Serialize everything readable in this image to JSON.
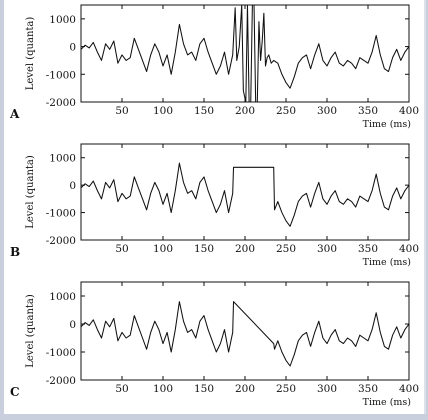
{
  "colors": {
    "background": "#c9cfdc",
    "figure": "#ffffff",
    "line": "#111111"
  },
  "chart_data": [
    {
      "type": "line",
      "panel_label": "A",
      "title": "",
      "xlabel": "Time (ms)",
      "ylabel": "Level (quanta)",
      "xlim": [
        0,
        400
      ],
      "ylim": [
        -2000,
        1500
      ],
      "xticks": [
        50,
        100,
        150,
        200,
        250,
        300,
        350,
        400
      ],
      "yticks": [
        -2000,
        -1000,
        0,
        1000
      ],
      "grid": false,
      "series": [
        {
          "x": [
            0,
            5,
            10,
            15,
            20,
            25,
            30,
            35,
            40,
            45,
            50,
            55,
            60,
            65,
            70,
            75,
            80,
            85,
            90,
            95,
            100,
            105,
            110,
            115,
            120,
            125,
            130,
            135,
            140,
            145,
            150,
            155,
            160,
            165,
            170,
            175,
            180,
            185,
            188,
            190,
            193,
            196,
            198,
            201,
            203,
            205,
            207,
            209,
            211,
            213,
            215,
            217,
            219,
            221,
            223,
            225,
            227,
            229,
            232,
            235,
            240,
            245,
            250,
            255,
            260,
            265,
            270,
            275,
            280,
            285,
            290,
            295,
            300,
            305,
            310,
            315,
            320,
            325,
            330,
            335,
            340,
            345,
            350,
            355,
            360,
            365,
            370,
            375,
            380,
            385,
            390,
            395,
            400
          ],
          "y": [
            -100,
            50,
            -50,
            150,
            -200,
            -500,
            100,
            -100,
            200,
            -600,
            -300,
            -500,
            -400,
            300,
            -100,
            -500,
            -900,
            -300,
            100,
            -200,
            -700,
            -300,
            -1000,
            -200,
            800,
            100,
            -300,
            -200,
            -500,
            100,
            300,
            -200,
            -600,
            -1000,
            -700,
            -200,
            -1000,
            -300,
            1400,
            -500,
            0,
            1500,
            -1600,
            -2000,
            1500,
            -2000,
            -2000,
            1500,
            1500,
            -2000,
            -2000,
            900,
            -500,
            200,
            1200,
            -700,
            -400,
            -300,
            -600,
            -500,
            -600,
            -1000,
            -1300,
            -1500,
            -1100,
            -600,
            -400,
            -300,
            -800,
            -300,
            100,
            -500,
            -700,
            -400,
            -200,
            -600,
            -700,
            -500,
            -600,
            -800,
            -400,
            -500,
            -600,
            -200,
            400,
            -300,
            -800,
            -900,
            -400,
            -100,
            -500,
            -200,
            0
          ]
        }
      ]
    },
    {
      "type": "line",
      "panel_label": "B",
      "title": "",
      "xlabel": "Time (ms)",
      "ylabel": "Level (quanta)",
      "xlim": [
        0,
        400
      ],
      "ylim": [
        -2000,
        1500
      ],
      "xticks": [
        50,
        100,
        150,
        200,
        250,
        300,
        350,
        400
      ],
      "yticks": [
        -2000,
        -1000,
        0,
        1000
      ],
      "grid": false,
      "series": [
        {
          "x": [
            0,
            5,
            10,
            15,
            20,
            25,
            30,
            35,
            40,
            45,
            50,
            55,
            60,
            65,
            70,
            75,
            80,
            85,
            90,
            95,
            100,
            105,
            110,
            115,
            120,
            125,
            130,
            135,
            140,
            145,
            150,
            155,
            160,
            165,
            170,
            175,
            180,
            185,
            186,
            235,
            236,
            240,
            245,
            250,
            255,
            260,
            265,
            270,
            275,
            280,
            285,
            290,
            295,
            300,
            305,
            310,
            315,
            320,
            325,
            330,
            335,
            340,
            345,
            350,
            355,
            360,
            365,
            370,
            375,
            380,
            385,
            390,
            395,
            400
          ],
          "y": [
            -100,
            50,
            -50,
            150,
            -200,
            -500,
            100,
            -100,
            200,
            -600,
            -300,
            -500,
            -400,
            300,
            -100,
            -500,
            -900,
            -300,
            100,
            -200,
            -700,
            -300,
            -1000,
            -200,
            800,
            100,
            -300,
            -200,
            -500,
            100,
            300,
            -200,
            -600,
            -1000,
            -700,
            -200,
            -1000,
            -300,
            650,
            650,
            -900,
            -600,
            -1000,
            -1300,
            -1500,
            -1100,
            -600,
            -400,
            -300,
            -800,
            -300,
            100,
            -500,
            -700,
            -400,
            -200,
            -600,
            -700,
            -500,
            -600,
            -800,
            -400,
            -500,
            -600,
            -200,
            400,
            -300,
            -800,
            -900,
            -400,
            -100,
            -500,
            -200,
            0
          ]
        }
      ]
    },
    {
      "type": "line",
      "panel_label": "C",
      "title": "",
      "xlabel": "Time (ms)",
      "ylabel": "Level (quanta)",
      "xlim": [
        0,
        400
      ],
      "ylim": [
        -2000,
        1500
      ],
      "xticks": [
        50,
        100,
        150,
        200,
        250,
        300,
        350,
        400
      ],
      "yticks": [
        -2000,
        -1000,
        0,
        1000
      ],
      "grid": false,
      "series": [
        {
          "x": [
            0,
            5,
            10,
            15,
            20,
            25,
            30,
            35,
            40,
            45,
            50,
            55,
            60,
            65,
            70,
            75,
            80,
            85,
            90,
            95,
            100,
            105,
            110,
            115,
            120,
            125,
            130,
            135,
            140,
            145,
            150,
            155,
            160,
            165,
            170,
            175,
            180,
            185,
            186,
            235,
            236,
            240,
            245,
            250,
            255,
            260,
            265,
            270,
            275,
            280,
            285,
            290,
            295,
            300,
            305,
            310,
            315,
            320,
            325,
            330,
            335,
            340,
            345,
            350,
            355,
            360,
            365,
            370,
            375,
            380,
            385,
            390,
            395,
            400
          ],
          "y": [
            -100,
            50,
            -50,
            150,
            -200,
            -500,
            100,
            -100,
            200,
            -600,
            -300,
            -500,
            -400,
            300,
            -100,
            -500,
            -900,
            -300,
            100,
            -200,
            -700,
            -300,
            -1000,
            -200,
            800,
            100,
            -300,
            -200,
            -500,
            100,
            300,
            -200,
            -600,
            -1000,
            -700,
            -200,
            -1000,
            -300,
            800,
            -700,
            -900,
            -600,
            -1000,
            -1300,
            -1500,
            -1100,
            -600,
            -400,
            -300,
            -800,
            -300,
            100,
            -500,
            -700,
            -400,
            -200,
            -600,
            -700,
            -500,
            -600,
            -800,
            -400,
            -500,
            -600,
            -200,
            400,
            -300,
            -800,
            -900,
            -400,
            -100,
            -500,
            -200,
            0
          ]
        }
      ]
    }
  ]
}
